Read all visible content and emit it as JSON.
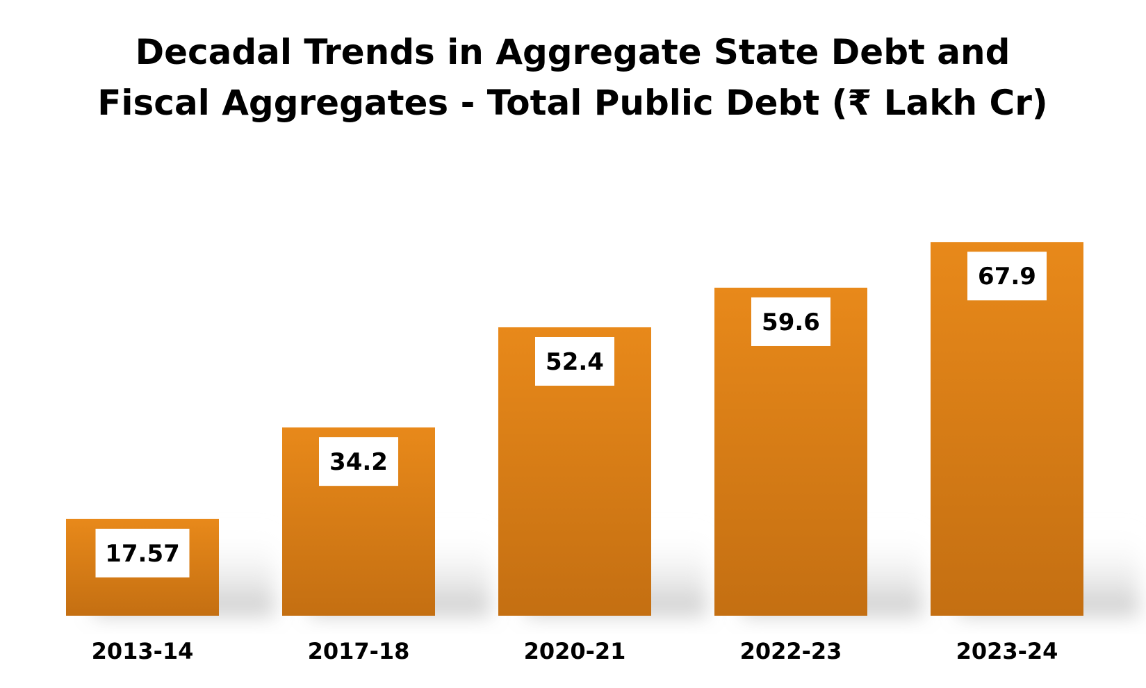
{
  "chart_data": {
    "type": "bar",
    "title_lines": [
      "Decadal Trends in Aggregate State Debt and",
      "Fiscal Aggregates - Total Public Debt (₹ Lakh Cr)"
    ],
    "categories": [
      "2013-14",
      "2017-18",
      "2020-21",
      "2022-23",
      "2023-24"
    ],
    "values": [
      17.57,
      34.2,
      52.4,
      59.6,
      67.9
    ],
    "value_labels": [
      "17.57",
      "34.2",
      "52.4",
      "59.6",
      "67.9"
    ],
    "ylim": [
      0,
      70
    ],
    "grid": false,
    "legend": "none",
    "y_axis_visible": false,
    "colors": {
      "bar_top": "#e8891a",
      "bar_bottom": "#c46f12",
      "label_bg": "#ffffff",
      "text": "#000000"
    }
  }
}
